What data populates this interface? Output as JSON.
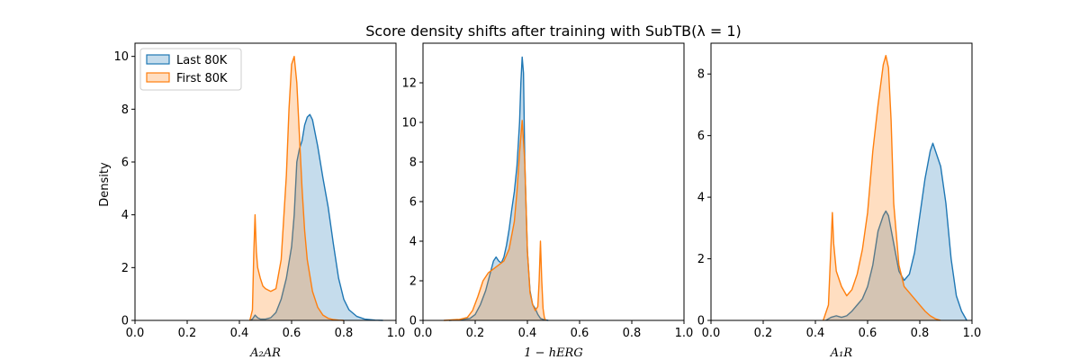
{
  "chart_data": {
    "type": "area",
    "title": "Score density shifts after training with SubTB(λ = 1)",
    "ylabel": "Density",
    "legend": {
      "placement": "top-left",
      "entries": [
        "Last 80K",
        "First 80K"
      ]
    },
    "colors": {
      "last": "#1f77b4",
      "first": "#ff7f0e"
    },
    "panels": [
      {
        "xlabel": "A₂AR",
        "xlim": [
          0.0,
          1.0
        ],
        "ylim": [
          0,
          10.5
        ],
        "xticks": [
          "0.0",
          "0.2",
          "0.4",
          "0.6",
          "0.8",
          "1.0"
        ],
        "yticks": [
          0,
          2,
          4,
          6,
          8,
          10
        ],
        "show_ylabel": true,
        "show_legend": true,
        "series": [
          {
            "name": "Last 80K",
            "x": [
              0.44,
              0.45,
              0.46,
              0.47,
              0.48,
              0.5,
              0.52,
              0.54,
              0.56,
              0.58,
              0.6,
              0.61,
              0.62,
              0.63,
              0.64,
              0.65,
              0.66,
              0.67,
              0.68,
              0.69,
              0.7,
              0.72,
              0.74,
              0.76,
              0.78,
              0.8,
              0.82,
              0.85,
              0.88,
              0.92,
              0.95
            ],
            "y": [
              0,
              0.05,
              0.2,
              0.1,
              0.05,
              0.05,
              0.1,
              0.3,
              0.8,
              1.6,
              2.8,
              4.0,
              6.0,
              6.5,
              6.8,
              7.4,
              7.7,
              7.8,
              7.6,
              7.1,
              6.6,
              5.4,
              4.3,
              2.9,
              1.6,
              0.8,
              0.4,
              0.15,
              0.05,
              0.01,
              0
            ]
          },
          {
            "name": "First 80K",
            "x": [
              0.44,
              0.45,
              0.455,
              0.46,
              0.465,
              0.47,
              0.48,
              0.49,
              0.5,
              0.52,
              0.54,
              0.56,
              0.58,
              0.59,
              0.6,
              0.61,
              0.62,
              0.63,
              0.64,
              0.65,
              0.66,
              0.68,
              0.7,
              0.72,
              0.74,
              0.76,
              0.78,
              0.8
            ],
            "y": [
              0,
              0.4,
              2.5,
              4.0,
              2.6,
              2.0,
              1.6,
              1.3,
              1.2,
              1.1,
              1.2,
              2.3,
              5.5,
              8.0,
              9.7,
              10.0,
              9.0,
              7.0,
              5.0,
              3.4,
              2.3,
              1.1,
              0.5,
              0.2,
              0.08,
              0.03,
              0.01,
              0
            ]
          }
        ]
      },
      {
        "xlabel": "1 − hERG",
        "xlim": [
          0.0,
          1.0
        ],
        "ylim": [
          0,
          14.0
        ],
        "xticks": [
          "0.0",
          "0.2",
          "0.4",
          "0.6",
          "0.8",
          "1.0"
        ],
        "yticks": [
          0,
          2,
          4,
          6,
          8,
          10,
          12
        ],
        "show_ylabel": false,
        "show_legend": false,
        "series": [
          {
            "name": "Last 80K",
            "x": [
              0.1,
              0.15,
              0.18,
              0.2,
              0.22,
              0.24,
              0.26,
              0.27,
              0.28,
              0.29,
              0.3,
              0.31,
              0.32,
              0.33,
              0.34,
              0.35,
              0.36,
              0.37,
              0.375,
              0.38,
              0.385,
              0.39,
              0.4,
              0.41,
              0.42,
              0.43,
              0.44,
              0.45,
              0.46,
              0.47,
              0.48
            ],
            "y": [
              0,
              0.05,
              0.1,
              0.3,
              0.8,
              1.5,
              2.5,
              3.0,
              3.2,
              3.0,
              2.9,
              3.2,
              3.8,
              4.6,
              5.6,
              6.5,
              7.8,
              10.0,
              12.0,
              13.3,
              12.5,
              8.0,
              3.5,
              1.5,
              0.8,
              0.6,
              0.3,
              0.1,
              0.05,
              0.02,
              0
            ]
          },
          {
            "name": "First 80K",
            "x": [
              0.08,
              0.14,
              0.17,
              0.19,
              0.21,
              0.23,
              0.25,
              0.27,
              0.29,
              0.31,
              0.33,
              0.35,
              0.36,
              0.37,
              0.38,
              0.39,
              0.4,
              0.41,
              0.42,
              0.43,
              0.44,
              0.445,
              0.45,
              0.455,
              0.46,
              0.465,
              0.47
            ],
            "y": [
              0,
              0.05,
              0.15,
              0.5,
              1.2,
              2.0,
              2.4,
              2.6,
              2.8,
              3.0,
              3.6,
              5.0,
              6.5,
              8.5,
              10.1,
              8.0,
              3.5,
              1.4,
              0.8,
              0.5,
              0.7,
              2.0,
              4.0,
              2.0,
              0.6,
              0.15,
              0
            ]
          }
        ]
      },
      {
        "xlabel": "A₁R",
        "xlim": [
          0.0,
          1.0
        ],
        "ylim": [
          0,
          9.0
        ],
        "xticks": [
          "0.0",
          "0.2",
          "0.4",
          "0.6",
          "0.8",
          "1.0"
        ],
        "yticks": [
          0,
          2,
          4,
          6,
          8
        ],
        "show_ylabel": false,
        "show_legend": false,
        "series": [
          {
            "name": "Last 80K",
            "x": [
              0.44,
              0.46,
              0.48,
              0.5,
              0.52,
              0.54,
              0.56,
              0.58,
              0.6,
              0.62,
              0.64,
              0.66,
              0.67,
              0.68,
              0.7,
              0.72,
              0.74,
              0.76,
              0.78,
              0.8,
              0.82,
              0.84,
              0.85,
              0.86,
              0.88,
              0.9,
              0.92,
              0.94,
              0.96,
              0.98
            ],
            "y": [
              0,
              0.1,
              0.15,
              0.1,
              0.15,
              0.3,
              0.5,
              0.7,
              1.1,
              1.8,
              2.9,
              3.4,
              3.55,
              3.4,
              2.5,
              1.6,
              1.3,
              1.5,
              2.2,
              3.4,
              4.6,
              5.5,
              5.75,
              5.5,
              5.0,
              3.8,
              2.0,
              0.8,
              0.3,
              0
            ]
          },
          {
            "name": "First 80K",
            "x": [
              0.43,
              0.45,
              0.46,
              0.465,
              0.47,
              0.48,
              0.5,
              0.52,
              0.54,
              0.56,
              0.58,
              0.6,
              0.62,
              0.64,
              0.66,
              0.67,
              0.68,
              0.69,
              0.7,
              0.72,
              0.74,
              0.76,
              0.78,
              0.8,
              0.82,
              0.84,
              0.86,
              0.88
            ],
            "y": [
              0,
              0.5,
              2.5,
              3.5,
              2.5,
              1.6,
              1.1,
              0.8,
              1.0,
              1.5,
              2.3,
              3.5,
              5.5,
              7.0,
              8.3,
              8.6,
              8.2,
              6.5,
              3.8,
              1.8,
              1.1,
              0.9,
              0.7,
              0.5,
              0.3,
              0.15,
              0.05,
              0
            ]
          }
        ]
      }
    ]
  }
}
